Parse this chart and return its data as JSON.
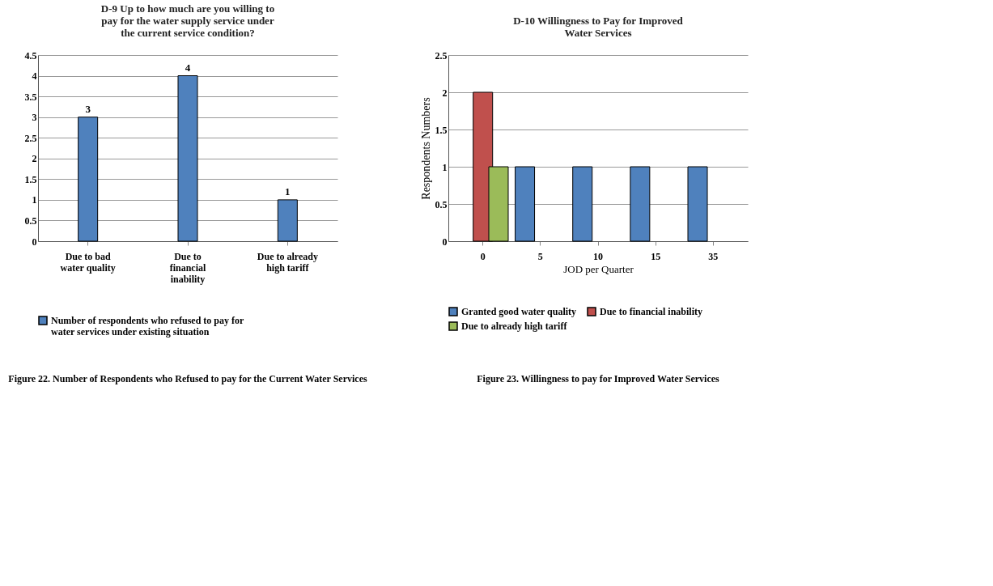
{
  "chart_data": [
    {
      "type": "bar",
      "title": "D-9 Up to how much are you willing to pay for the water supply service under the current service condition?",
      "categories": [
        "Due to bad water quality",
        "Due to financial inability",
        "Due to already high tariff"
      ],
      "series": [
        {
          "name": "Number of respondents who refused to pay for water services under existing situation",
          "color": "#4f81bd",
          "values": [
            3,
            4,
            1
          ]
        }
      ],
      "ylim": [
        0,
        4.5
      ],
      "yticks": [
        0,
        0.5,
        1,
        1.5,
        2,
        2.5,
        3,
        3.5,
        4,
        4.5
      ],
      "grid": "y",
      "legend": "bottom",
      "data_labels": true,
      "annotations": [
        "Figure 22.    Number of Respondents who Refused to pay for the Current Water Services"
      ]
    },
    {
      "type": "bar",
      "title": "D-10 Willingness to Pay for Improved Water Services",
      "xlabel": "JOD per Quarter",
      "ylabel": "Respondents Numbers",
      "categories": [
        "0",
        "5",
        "10",
        "15",
        "35"
      ],
      "series": [
        {
          "name": "Granted good water quality",
          "color": "#4f81bd",
          "values": [
            null,
            1,
            1,
            1,
            1
          ]
        },
        {
          "name": "Due to financial inability",
          "color": "#c0504d",
          "values": [
            2,
            null,
            null,
            null,
            null
          ]
        },
        {
          "name": "Due to already high tariff",
          "color": "#9bbb59",
          "values": [
            1,
            null,
            null,
            null,
            null
          ]
        }
      ],
      "ylim": [
        0,
        2.5
      ],
      "yticks": [
        0,
        0.5,
        1,
        1.5,
        2,
        2.5
      ],
      "grid": "y",
      "legend": "bottom",
      "annotations": [
        "Figure 23.    Willingness to pay for Improved Water Services"
      ]
    }
  ]
}
